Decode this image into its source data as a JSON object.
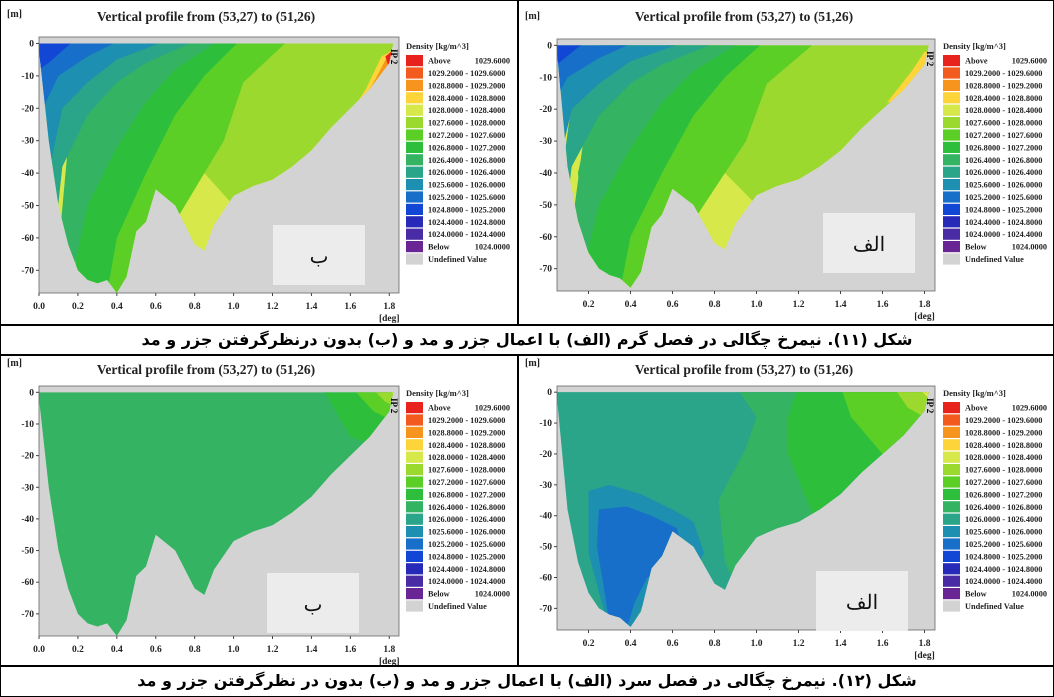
{
  "captions": {
    "figure11": "شکل (۱۱). نیمرخ چگالی در فصل گرم (الف) با اعمال جزر و مد و (ب) بدون درنظرگرفتن جزر و مد",
    "figure12": "شکل (۱۲). نیمرخ چگالی در فصل سرد (الف) با اعمال جزر و مد و (ب) بدون در نظرگرفتن جزر و مد"
  },
  "common": {
    "title": "Vertical profile from (53,27) to (51,26)",
    "y_unit": "[m]",
    "x_unit": "[deg]",
    "yticks": [
      0,
      -10,
      -20,
      -30,
      -40,
      -50,
      -60,
      -70
    ],
    "xticks_with_zero": [
      "0.0",
      "0.2",
      "0.4",
      "0.6",
      "0.8",
      "1.0",
      "1.2",
      "1.4",
      "1.6",
      "1.8"
    ],
    "xticks_no_zero": [
      "0.2",
      "0.4",
      "0.6",
      "0.8",
      "1.0",
      "1.2",
      "1.4",
      "1.6",
      "1.8"
    ],
    "station_label": "IP 2",
    "legend_title": "Density [kg/m^3]",
    "legend": [
      {
        "label": "Above",
        "value": "1029.6000",
        "color": "#e8231e"
      },
      {
        "label": "1029.2000 - 1029.6000",
        "color": "#f25a1e"
      },
      {
        "label": "1028.8000 - 1029.2000",
        "color": "#f7941d"
      },
      {
        "label": "1028.4000 - 1028.8000",
        "color": "#fdd43a"
      },
      {
        "label": "1028.0000 - 1028.4000",
        "color": "#d6e84a"
      },
      {
        "label": "1027.6000 - 1028.0000",
        "color": "#9bd92e"
      },
      {
        "label": "1027.2000 - 1027.6000",
        "color": "#5ccf27"
      },
      {
        "label": "1026.8000 - 1027.2000",
        "color": "#2dbf3c"
      },
      {
        "label": "1026.4000 - 1026.8000",
        "color": "#34b363"
      },
      {
        "label": "1026.0000 - 1026.4000",
        "color": "#2aa58a"
      },
      {
        "label": "1025.6000 - 1026.0000",
        "color": "#1d8fb0"
      },
      {
        "label": "1025.2000 - 1025.6000",
        "color": "#176fc9"
      },
      {
        "label": "1024.8000 - 1025.2000",
        "color": "#1247d6"
      },
      {
        "label": "1024.4000 - 1024.8000",
        "color": "#2729b8"
      },
      {
        "label": "1024.0000 - 1024.4000",
        "color": "#4a2ba6"
      },
      {
        "label": "Below",
        "value": "1024.0000",
        "color": "#6a2594"
      },
      {
        "label": "Undefined Value",
        "color": "#d3d3d3"
      }
    ]
  },
  "chart_data": [
    {
      "type": "heatmap",
      "panel_label": "ب",
      "season": "warm",
      "title": "Vertical profile from (53,27) to (51,26)",
      "xlabel": "[deg]",
      "ylabel": "[m]",
      "xlim": [
        0.0,
        1.85
      ],
      "ylim": [
        -77,
        2
      ],
      "bottom_profile": [
        [
          0.0,
          -2
        ],
        [
          0.05,
          -30
        ],
        [
          0.1,
          -50
        ],
        [
          0.15,
          -62
        ],
        [
          0.2,
          -70
        ],
        [
          0.25,
          -73
        ],
        [
          0.3,
          -74
        ],
        [
          0.35,
          -73
        ],
        [
          0.4,
          -77
        ],
        [
          0.45,
          -72
        ],
        [
          0.5,
          -58
        ],
        [
          0.55,
          -55
        ],
        [
          0.6,
          -45
        ],
        [
          0.7,
          -50
        ],
        [
          0.8,
          -62
        ],
        [
          0.85,
          -64
        ],
        [
          0.9,
          -56
        ],
        [
          1.0,
          -47
        ],
        [
          1.1,
          -44
        ],
        [
          1.2,
          -42
        ],
        [
          1.3,
          -38
        ],
        [
          1.4,
          -33
        ],
        [
          1.5,
          -26
        ],
        [
          1.6,
          -20
        ],
        [
          1.7,
          -14
        ],
        [
          1.8,
          -6
        ],
        [
          1.82,
          0
        ]
      ],
      "surface_density_range": [
        "1024.8000",
        "1029.6000"
      ]
    },
    {
      "type": "heatmap",
      "panel_label": "الف",
      "season": "warm",
      "title": "Vertical profile from (53,27) to (51,26)",
      "xlabel": "[deg]",
      "ylabel": "[m]",
      "xlim": [
        0.05,
        1.85
      ],
      "ylim": [
        -77,
        2
      ],
      "bottom_profile": [
        [
          0.05,
          -2
        ],
        [
          0.1,
          -38
        ],
        [
          0.15,
          -55
        ],
        [
          0.2,
          -65
        ],
        [
          0.25,
          -70
        ],
        [
          0.3,
          -72
        ],
        [
          0.35,
          -73
        ],
        [
          0.4,
          -76
        ],
        [
          0.45,
          -71
        ],
        [
          0.5,
          -57
        ],
        [
          0.55,
          -53
        ],
        [
          0.6,
          -45
        ],
        [
          0.7,
          -50
        ],
        [
          0.8,
          -62
        ],
        [
          0.85,
          -64
        ],
        [
          0.9,
          -56
        ],
        [
          1.0,
          -47
        ],
        [
          1.1,
          -44
        ],
        [
          1.2,
          -42
        ],
        [
          1.3,
          -38
        ],
        [
          1.4,
          -33
        ],
        [
          1.5,
          -26
        ],
        [
          1.6,
          -20
        ],
        [
          1.7,
          -14
        ],
        [
          1.8,
          -6
        ],
        [
          1.82,
          0
        ]
      ],
      "surface_density_range": [
        "1024.8000",
        "1029.2000"
      ]
    },
    {
      "type": "heatmap",
      "panel_label": "ب",
      "season": "cold",
      "title": "Vertical profile from (53,27) to (51,26)",
      "xlabel": "[deg]",
      "ylabel": "[m]",
      "xlim": [
        0.0,
        1.85
      ],
      "ylim": [
        -77,
        2
      ],
      "bottom_profile": [
        [
          0.0,
          -2
        ],
        [
          0.05,
          -30
        ],
        [
          0.1,
          -50
        ],
        [
          0.15,
          -62
        ],
        [
          0.2,
          -70
        ],
        [
          0.25,
          -73
        ],
        [
          0.3,
          -74
        ],
        [
          0.35,
          -73
        ],
        [
          0.4,
          -77
        ],
        [
          0.45,
          -72
        ],
        [
          0.5,
          -58
        ],
        [
          0.55,
          -55
        ],
        [
          0.6,
          -45
        ],
        [
          0.7,
          -50
        ],
        [
          0.8,
          -62
        ],
        [
          0.85,
          -64
        ],
        [
          0.9,
          -56
        ],
        [
          1.0,
          -47
        ],
        [
          1.1,
          -44
        ],
        [
          1.2,
          -42
        ],
        [
          1.3,
          -38
        ],
        [
          1.4,
          -33
        ],
        [
          1.5,
          -26
        ],
        [
          1.6,
          -20
        ],
        [
          1.7,
          -14
        ],
        [
          1.8,
          -6
        ],
        [
          1.82,
          0
        ]
      ],
      "surface_density_range": [
        "1026.0000",
        "1028.4000"
      ]
    },
    {
      "type": "heatmap",
      "panel_label": "الف",
      "season": "cold",
      "title": "Vertical profile from (53,27) to (51,26)",
      "xlabel": "[deg]",
      "ylabel": "[m]",
      "xlim": [
        0.05,
        1.85
      ],
      "ylim": [
        -77,
        2
      ],
      "bottom_profile": [
        [
          0.05,
          -2
        ],
        [
          0.1,
          -38
        ],
        [
          0.15,
          -55
        ],
        [
          0.2,
          -65
        ],
        [
          0.25,
          -70
        ],
        [
          0.3,
          -72
        ],
        [
          0.35,
          -73
        ],
        [
          0.4,
          -76
        ],
        [
          0.45,
          -71
        ],
        [
          0.5,
          -57
        ],
        [
          0.55,
          -53
        ],
        [
          0.6,
          -45
        ],
        [
          0.7,
          -50
        ],
        [
          0.8,
          -62
        ],
        [
          0.85,
          -64
        ],
        [
          0.9,
          -56
        ],
        [
          1.0,
          -47
        ],
        [
          1.1,
          -44
        ],
        [
          1.2,
          -42
        ],
        [
          1.3,
          -38
        ],
        [
          1.4,
          -33
        ],
        [
          1.5,
          -26
        ],
        [
          1.6,
          -20
        ],
        [
          1.7,
          -14
        ],
        [
          1.8,
          -6
        ],
        [
          1.82,
          0
        ]
      ],
      "surface_density_range": [
        "1025.6000",
        "1028.4000"
      ]
    }
  ]
}
